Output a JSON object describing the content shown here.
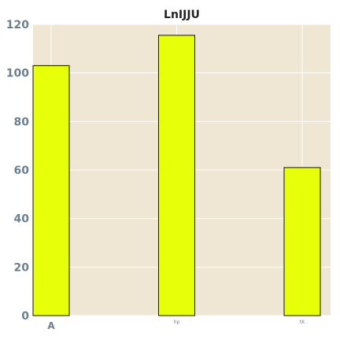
{
  "chart_data": {
    "type": "bar",
    "title": "LnIJJU",
    "xlabel": "",
    "ylabel": "",
    "categories": [
      "A",
      "hp",
      "tK"
    ],
    "values": [
      103,
      115.5,
      61
    ],
    "ylim": [
      0,
      120
    ],
    "yticks": [
      0,
      20,
      40,
      60,
      80,
      100,
      120
    ],
    "grid": true,
    "legend": "none"
  },
  "colors": {
    "bar_fill": "#e8ff0a",
    "bar_stroke": "#111111",
    "plot_background": "#efe6d3",
    "grid": "#ffffff",
    "tick_label": "#6b7f8c",
    "title": "#222222"
  }
}
